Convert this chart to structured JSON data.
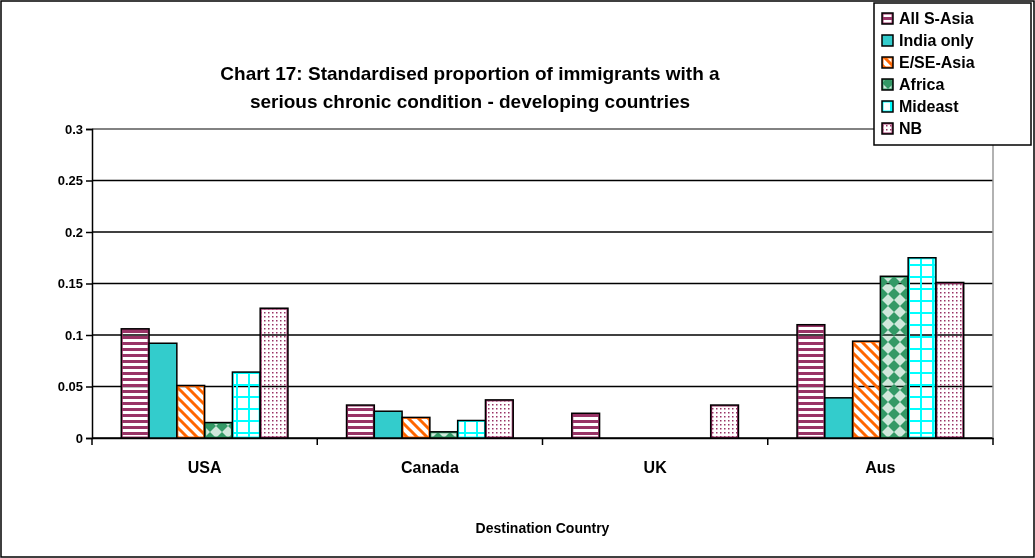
{
  "chart_data": {
    "type": "bar",
    "title": "Chart 17: Standardised proportion of immigrants with a serious chronic condition - developing countries",
    "xlabel": "Destination Country",
    "categories": [
      "USA",
      "Canada",
      "UK",
      "Aus"
    ],
    "series": [
      {
        "name": "All S-Asia",
        "color": "#993366",
        "values": [
          0.106,
          0.032,
          0.024,
          0.11
        ]
      },
      {
        "name": "India only",
        "color": "#33cccc",
        "values": [
          0.092,
          0.026,
          null,
          0.039
        ]
      },
      {
        "name": "E/SE-Asia",
        "color": "#ff6600",
        "values": [
          0.051,
          0.02,
          null,
          0.094
        ]
      },
      {
        "name": "Africa",
        "color": "#339966",
        "values": [
          0.015,
          0.006,
          null,
          0.157
        ]
      },
      {
        "name": "Mideast",
        "color": "#00ffff",
        "values": [
          0.064,
          0.017,
          null,
          0.175
        ]
      },
      {
        "name": "NB",
        "color": "#993366",
        "values": [
          0.126,
          0.037,
          0.032,
          0.151
        ]
      }
    ],
    "ylim": [
      0,
      0.3
    ],
    "yticks": [
      0,
      0.05,
      0.1,
      0.15,
      0.2,
      0.25,
      0.3
    ],
    "grid": "y",
    "legend": "top right"
  }
}
